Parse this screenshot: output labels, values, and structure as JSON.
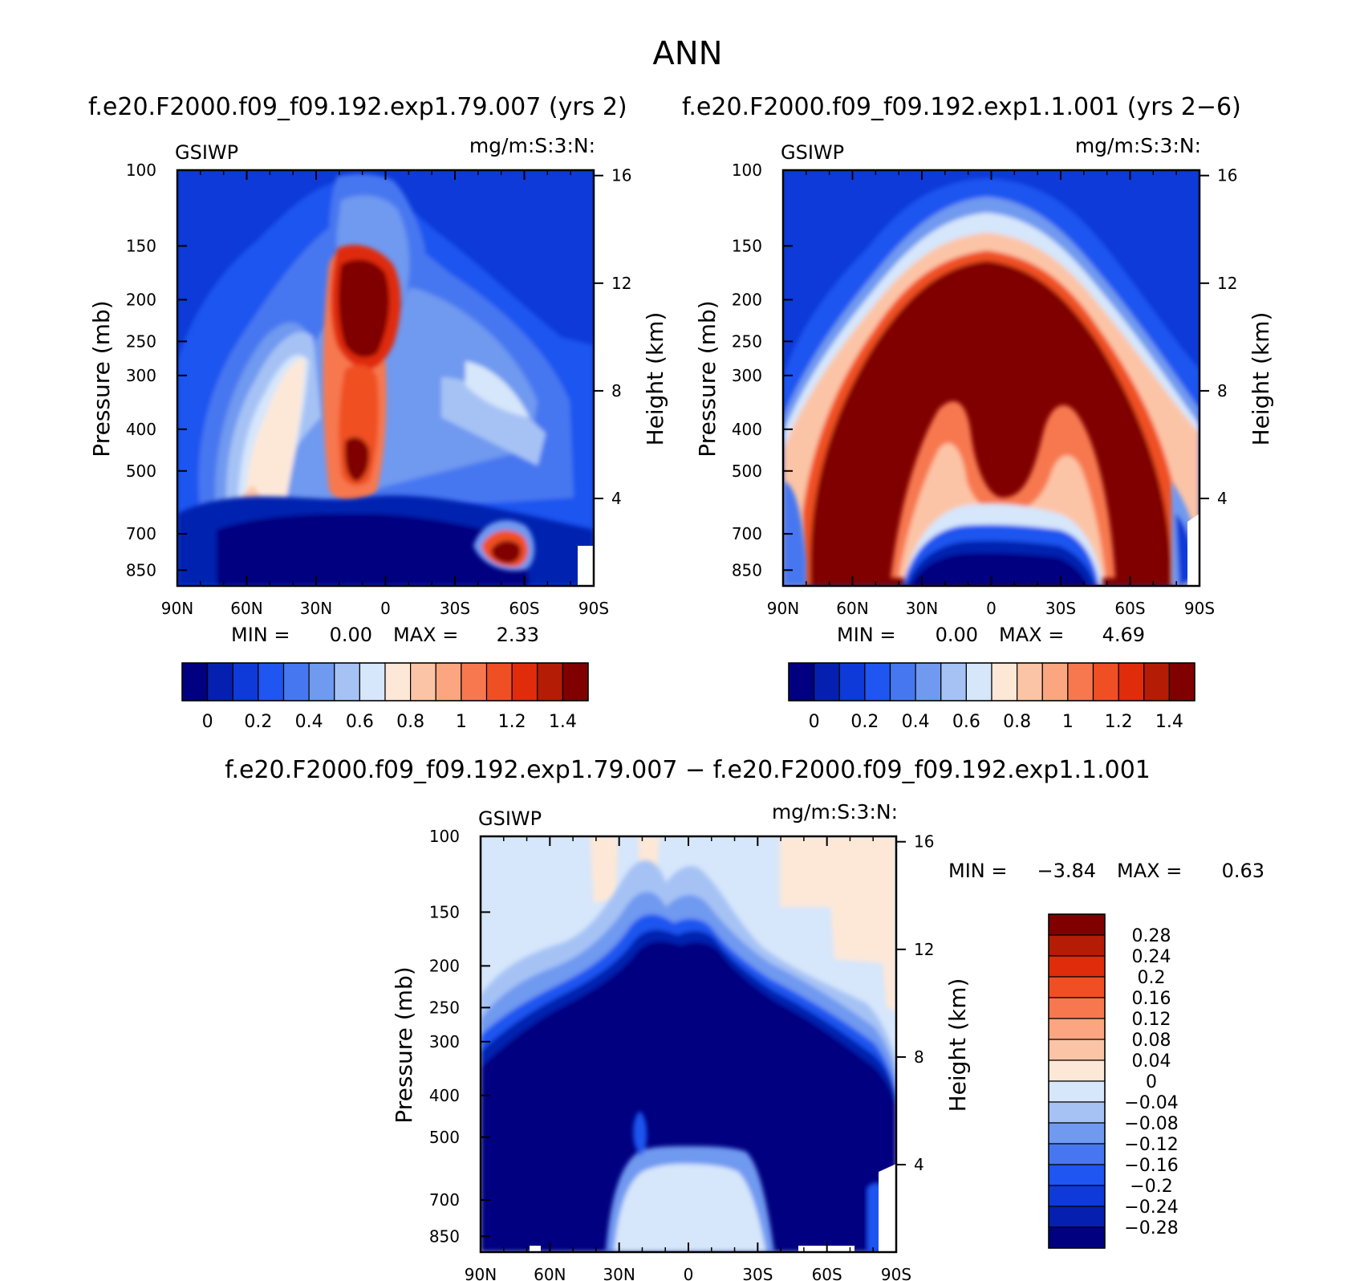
{
  "figure": {
    "main_title": "ANN",
    "top_left_title": "f.e20.F2000.f09_f09.192.exp1.79.007 (yrs 2)",
    "top_right_title": "f.e20.F2000.f09_f09.192.exp1.1.001 (yrs 2−6)",
    "bottom_title": "f.e20.F2000.f09_f09.192.exp1.79.007 − f.e20.F2000.f09_f09.192.exp1.1.001"
  },
  "chart_data": [
    {
      "id": "panel1",
      "type": "heatmap",
      "variable": "GSIWP",
      "units": "mg/m:S:3:N:",
      "ylabel": "Pressure (mb)",
      "ylabel_right": "Height (km)",
      "x_ticks": [
        "90N",
        "60N",
        "30N",
        "0",
        "30S",
        "60S",
        "90S"
      ],
      "y_ticks": [
        "100",
        "150",
        "200",
        "250",
        "300",
        "400",
        "500",
        "700",
        "850"
      ],
      "y_ticks_right": [
        "16",
        "12",
        "8",
        "4"
      ],
      "stats": {
        "min_label": "MIN =",
        "min": "0.00",
        "max_label": "MAX =",
        "max": "2.33"
      },
      "levels": [
        0,
        0.1,
        0.2,
        0.3,
        0.4,
        0.5,
        0.6,
        0.7,
        0.8,
        0.9,
        1.0,
        1.1,
        1.2,
        1.3,
        1.4
      ],
      "colorbar_labels": [
        "0",
        "0.2",
        "0.4",
        "0.6",
        "0.8",
        "1",
        "1.2",
        "1.4"
      ],
      "colors": [
        "#000080",
        "#0520b0",
        "#0d3ad8",
        "#1f55f0",
        "#4777f0",
        "#7099f0",
        "#a6c2f5",
        "#d6e6fb",
        "#fde8d8",
        "#fcc4a6",
        "#fba680",
        "#f7784f",
        "#f04f24",
        "#e02c0a",
        "#b41c05",
        "#800000"
      ]
    },
    {
      "id": "panel2",
      "type": "heatmap",
      "variable": "GSIWP",
      "units": "mg/m:S:3:N:",
      "ylabel": "Pressure (mb)",
      "ylabel_right": "Height (km)",
      "x_ticks": [
        "90N",
        "60N",
        "30N",
        "0",
        "30S",
        "60S",
        "90S"
      ],
      "y_ticks": [
        "100",
        "150",
        "200",
        "250",
        "300",
        "400",
        "500",
        "700",
        "850"
      ],
      "y_ticks_right": [
        "16",
        "12",
        "8",
        "4"
      ],
      "stats": {
        "min_label": "MIN =",
        "min": "0.00",
        "max_label": "MAX =",
        "max": "4.69"
      },
      "levels": [
        0,
        0.1,
        0.2,
        0.3,
        0.4,
        0.5,
        0.6,
        0.7,
        0.8,
        0.9,
        1.0,
        1.1,
        1.2,
        1.3,
        1.4
      ],
      "colorbar_labels": [
        "0",
        "0.2",
        "0.4",
        "0.6",
        "0.8",
        "1",
        "1.2",
        "1.4"
      ],
      "colors": [
        "#000080",
        "#0520b0",
        "#0d3ad8",
        "#1f55f0",
        "#4777f0",
        "#7099f0",
        "#a6c2f5",
        "#d6e6fb",
        "#fde8d8",
        "#fcc4a6",
        "#fba680",
        "#f7784f",
        "#f04f24",
        "#e02c0a",
        "#b41c05",
        "#800000"
      ]
    },
    {
      "id": "panel3",
      "type": "heatmap",
      "variable": "GSIWP",
      "units": "mg/m:S:3:N:",
      "ylabel": "Pressure (mb)",
      "ylabel_right": "Height (km)",
      "x_ticks": [
        "90N",
        "60N",
        "30N",
        "0",
        "30S",
        "60S",
        "90S"
      ],
      "y_ticks": [
        "100",
        "150",
        "200",
        "250",
        "300",
        "400",
        "500",
        "700",
        "850"
      ],
      "y_ticks_right": [
        "16",
        "12",
        "8",
        "4"
      ],
      "stats": {
        "min_label": "MIN =",
        "min": "−3.84",
        "max_label": "MAX =",
        "max": "0.63"
      },
      "levels": [
        -0.28,
        -0.24,
        -0.2,
        -0.16,
        -0.12,
        -0.08,
        -0.04,
        0,
        0.04,
        0.08,
        0.12,
        0.16,
        0.2,
        0.24,
        0.28
      ],
      "colorbar_labels": [
        "0.28",
        "0.24",
        "0.2",
        "0.16",
        "0.12",
        "0.08",
        "0.04",
        "0",
        "−0.04",
        "−0.08",
        "−0.12",
        "−0.16",
        "−0.2",
        "−0.24",
        "−0.28"
      ],
      "colors": [
        "#800000",
        "#b41c05",
        "#e02c0a",
        "#f04f24",
        "#f7784f",
        "#fba680",
        "#fcc4a6",
        "#fde8d8",
        "#d6e6fb",
        "#a6c2f5",
        "#7099f0",
        "#4777f0",
        "#1f55f0",
        "#0d3ad8",
        "#0520b0",
        "#000080"
      ]
    }
  ]
}
